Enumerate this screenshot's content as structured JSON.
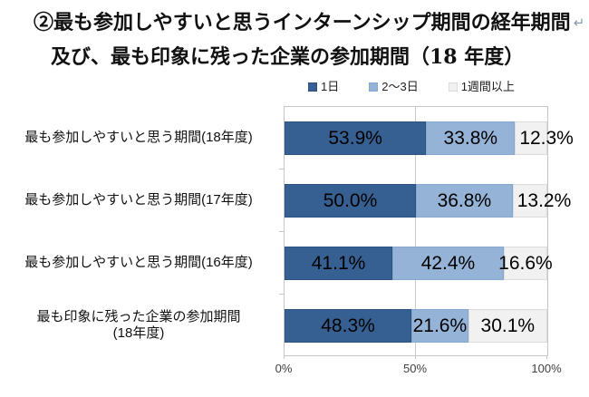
{
  "title": {
    "line1": "②最も参加しやすいと思うインターンシップ期間の経年期間",
    "return_mark": "↵",
    "line2": "及び、最も印象に残った企業の参加期間（18 年度）"
  },
  "chart_data": {
    "type": "bar",
    "orientation": "horizontal",
    "stacked": true,
    "unit": "percent",
    "grid": "vertical line at 50% only",
    "legend_position": "top",
    "value_label_format": "one decimal + %",
    "categories": [
      {
        "lines": [
          "最も参加しやすいと思う期間(18年度)"
        ]
      },
      {
        "lines": [
          "最も参加しやすいと思う期間(17年度)"
        ]
      },
      {
        "lines": [
          "最も参加しやすいと思う期間(16年度)"
        ]
      },
      {
        "lines": [
          "最も印象に残った企業の参加期間",
          "(18年度)"
        ]
      }
    ],
    "series": [
      {
        "name": "1日",
        "color": "#376092",
        "border": "#2e5380",
        "values": [
          53.9,
          50.0,
          41.1,
          48.3
        ]
      },
      {
        "name": "2〜3日",
        "color": "#95b3d7",
        "border": "#84a7ce",
        "values": [
          33.8,
          36.8,
          42.4,
          21.6
        ]
      },
      {
        "name": "1週間以上",
        "color": "#f1f1f1",
        "border": "#dcdcdc",
        "values": [
          12.3,
          13.2,
          16.6,
          30.1
        ]
      }
    ],
    "x_axis": {
      "min": 0,
      "max": 100,
      "ticks": [
        {
          "label": "0%",
          "pct": 0
        },
        {
          "label": "50%",
          "pct": 50
        },
        {
          "label": "100%",
          "pct": 100
        }
      ]
    }
  }
}
